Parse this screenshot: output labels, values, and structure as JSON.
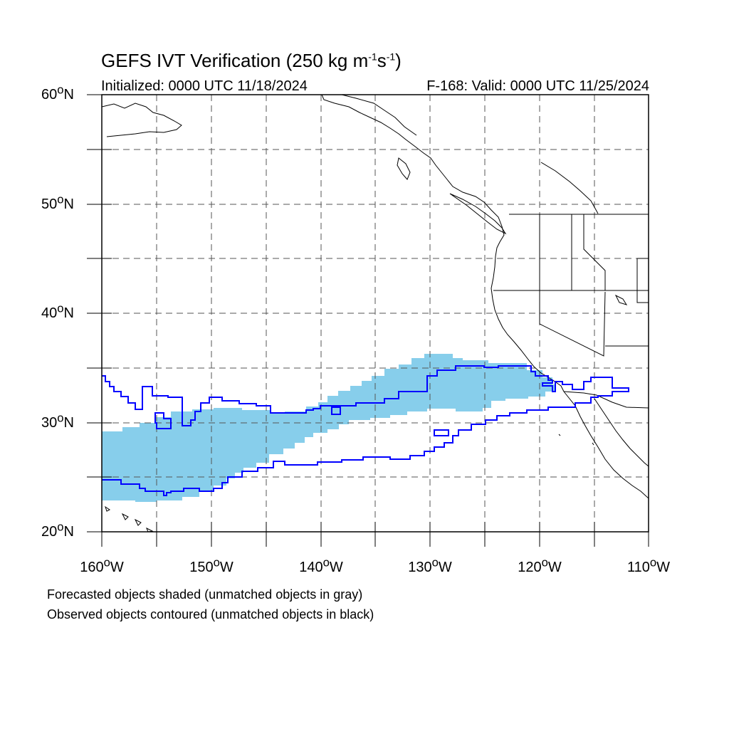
{
  "title": {
    "prefix": "GEFS IVT Verification (250 kg m",
    "exp1": "-1",
    "mid": "s",
    "exp2": "-1",
    "suffix": ")"
  },
  "initialized": "Initialized: 0000 UTC 11/18/2024",
  "valid": "F-168: Valid: 0000 UTC 11/25/2024",
  "lat_labels": [
    {
      "deg": "60",
      "unit": "o",
      "hemi": "N"
    },
    {
      "deg": "50",
      "unit": "o",
      "hemi": "N"
    },
    {
      "deg": "40",
      "unit": "o",
      "hemi": "N"
    },
    {
      "deg": "30",
      "unit": "o",
      "hemi": "N"
    },
    {
      "deg": "20",
      "unit": "o",
      "hemi": "N"
    }
  ],
  "lon_labels": [
    {
      "deg": "160",
      "unit": "o",
      "hemi": "W"
    },
    {
      "deg": "150",
      "unit": "o",
      "hemi": "W"
    },
    {
      "deg": "140",
      "unit": "o",
      "hemi": "W"
    },
    {
      "deg": "130",
      "unit": "o",
      "hemi": "W"
    },
    {
      "deg": "120",
      "unit": "o",
      "hemi": "W"
    },
    {
      "deg": "110",
      "unit": "o",
      "hemi": "W"
    }
  ],
  "notes": [
    "Forecasted objects shaded (unmatched objects in gray)",
    "Observed objects contoured (unmatched objects in black)"
  ],
  "colors": {
    "forecast_fill": "#87ceeb",
    "observed_contour": "#0000ff",
    "coastline": "#000000",
    "grid": "#555555"
  }
}
